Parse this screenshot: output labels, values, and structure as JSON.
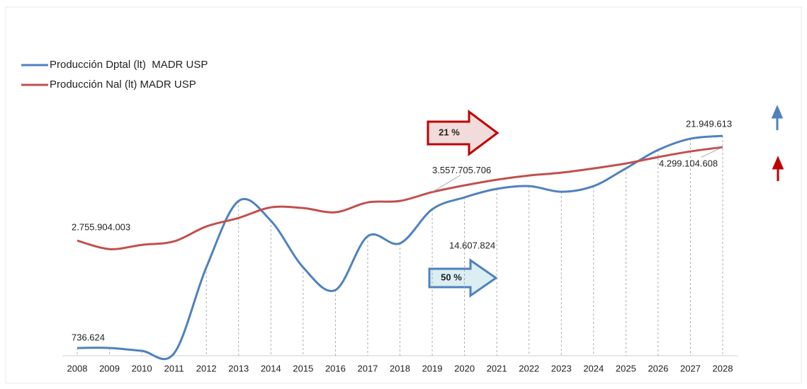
{
  "chart_data": {
    "type": "line",
    "categories": [
      "2008",
      "2009",
      "2010",
      "2011",
      "2012",
      "2013",
      "2014",
      "2015",
      "2016",
      "2017",
      "2018",
      "2019",
      "2020",
      "2021",
      "2022",
      "2023",
      "2024",
      "2025",
      "2026",
      "2027",
      "2028"
    ],
    "series": [
      {
        "name": "Producción Dptal (lt)  MADR USP",
        "color": "#4f81bd",
        "values": [
          736624,
          740000,
          452000,
          200000,
          8800000,
          15440000,
          13460000,
          8800000,
          6530000,
          11910000,
          11200000,
          14607824,
          15800000,
          16650000,
          16930000,
          16360000,
          16930000,
          18700000,
          20540000,
          21670000,
          21949613
        ],
        "value_labels": [
          "736.624",
          null,
          null,
          null,
          null,
          null,
          null,
          null,
          null,
          null,
          null,
          "14.607.824",
          null,
          null,
          null,
          null,
          null,
          null,
          null,
          null,
          "21.949.613"
        ]
      },
      {
        "name": "Producción Nal (lt) MADR USP",
        "color": "#c0504d",
        "axis": "y2",
        "values": [
          2755904003,
          2616000000,
          2686000000,
          2744000000,
          2990000000,
          3130000000,
          3305000000,
          3294000000,
          3224000000,
          3387000000,
          3411000000,
          3557705706,
          3668000000,
          3761000000,
          3831000000,
          3878000000,
          3948000000,
          4030000000,
          4135000000,
          4229000000,
          4299104608
        ],
        "value_labels": [
          "2.755.904.003",
          null,
          null,
          null,
          null,
          null,
          null,
          null,
          null,
          null,
          null,
          "3.557.705.706",
          null,
          null,
          null,
          null,
          null,
          null,
          null,
          null,
          "4.299.104.608"
        ]
      }
    ],
    "ylim": [
      0,
      25000000
    ],
    "y2lim": [
      862000000,
      4989000000
    ],
    "annotations": [
      "21 %",
      "50 %"
    ],
    "legend": "top-left"
  }
}
